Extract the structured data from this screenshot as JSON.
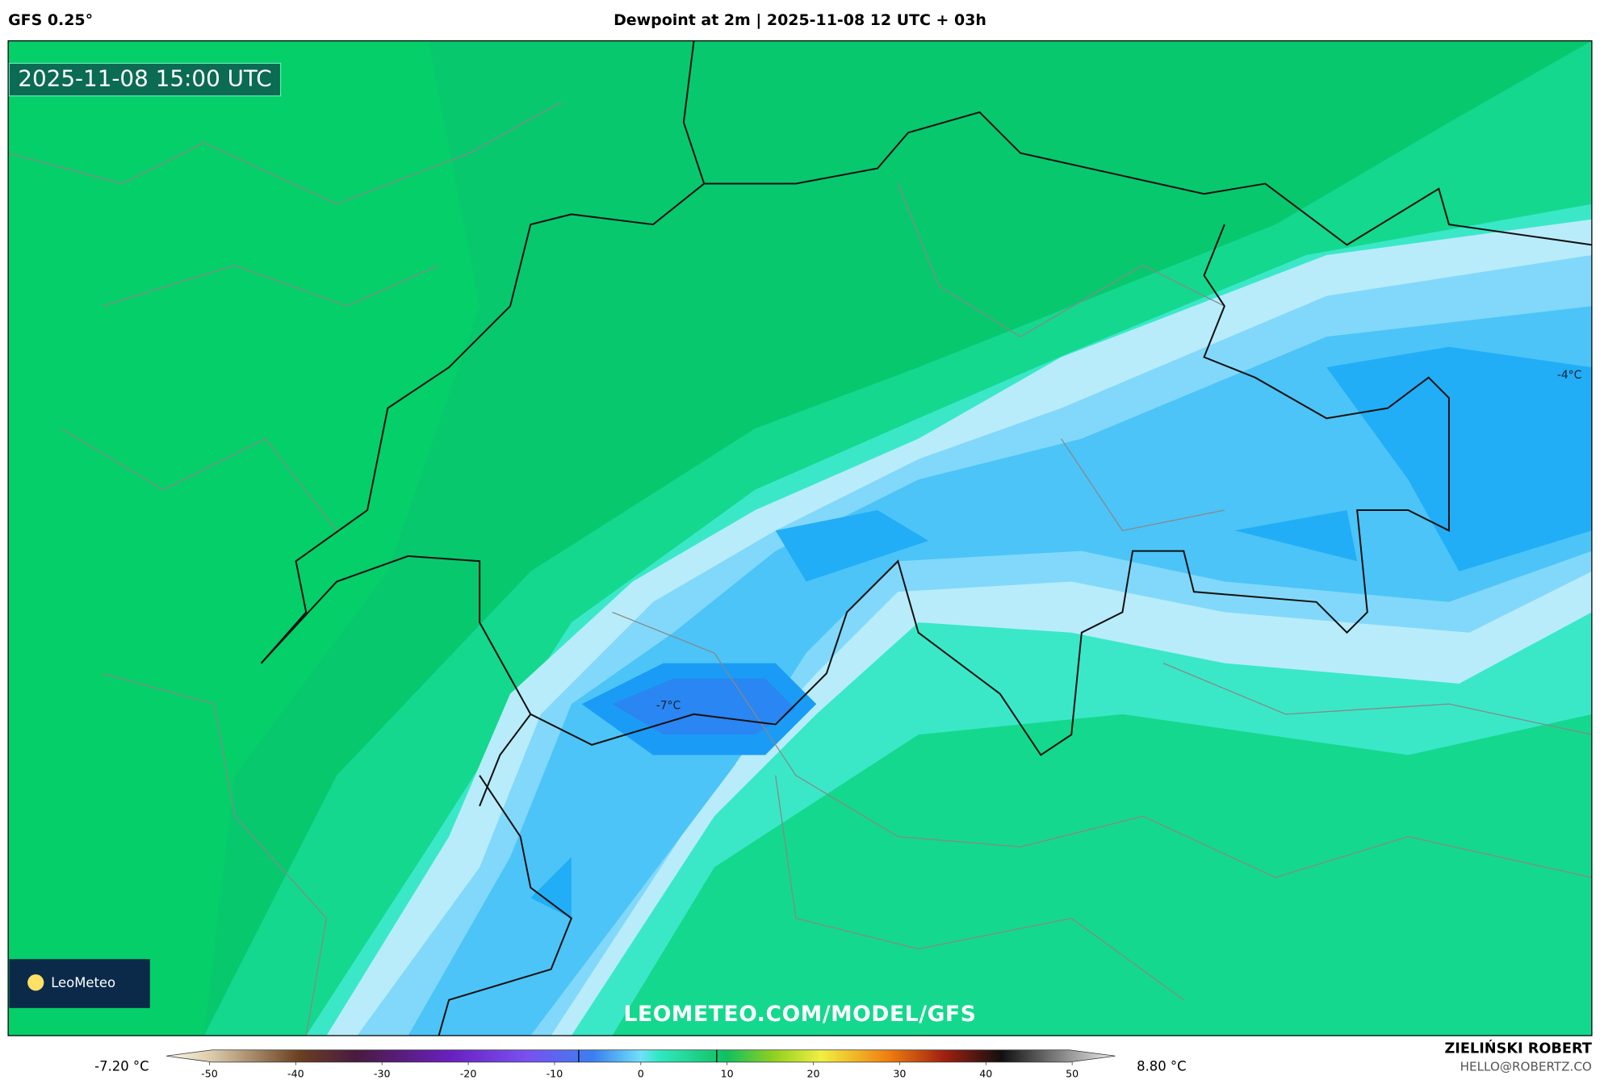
{
  "header": {
    "model": "GFS 0.25°",
    "title": "Dewpoint at 2m | 2025-11-08 12 UTC + 03h"
  },
  "map": {
    "timestamp": "2025-11-08 15:00 UTC",
    "labels": [
      "-4°C",
      "-7°C"
    ],
    "logo": "LeoMeteo",
    "watermark": "LEOMETEO.COM/MODEL/GFS"
  },
  "colorbar": {
    "lim": [
      -55,
      55
    ],
    "ticks": [
      -50,
      -40,
      -30,
      -20,
      -10,
      0,
      10,
      20,
      30,
      40,
      50
    ],
    "min": {
      "value": -7.2,
      "label": "-7.20 °C"
    },
    "max": {
      "value": 8.8,
      "label": "8.80 °C"
    }
  },
  "footer": {
    "author": "ZIELIŃSKI ROBERT",
    "contact": "HELLO@ROBERTZ.CO"
  }
}
